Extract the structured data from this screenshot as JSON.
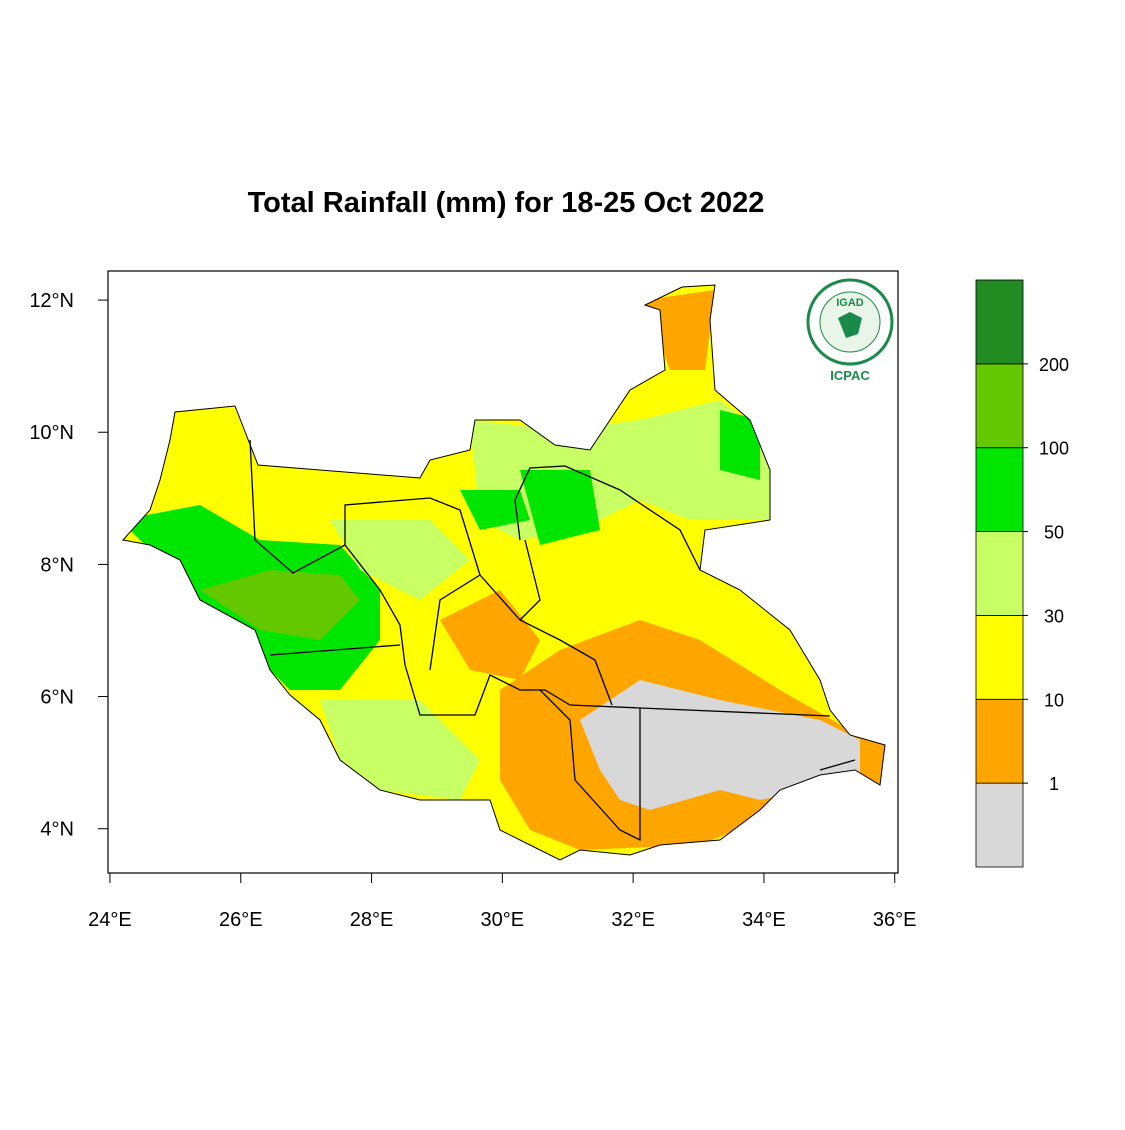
{
  "map": {
    "title": "Total Rainfall (mm) for 18-25 Oct 2022",
    "xlim": [
      23.97,
      36.05
    ],
    "ylim": [
      3.33,
      12.44
    ],
    "xticks": [
      {
        "value": 24,
        "label": "24°E"
      },
      {
        "value": 26,
        "label": "26°E"
      },
      {
        "value": 28,
        "label": "28°E"
      },
      {
        "value": 30,
        "label": "30°E"
      },
      {
        "value": 32,
        "label": "32°E"
      },
      {
        "value": 34,
        "label": "34°E"
      },
      {
        "value": 36,
        "label": "36°E"
      }
    ],
    "yticks": [
      {
        "value": 4,
        "label": "4°N"
      },
      {
        "value": 6,
        "label": "6°N"
      },
      {
        "value": 8,
        "label": "8°N"
      },
      {
        "value": 10,
        "label": "10°N"
      },
      {
        "value": 12,
        "label": "12°N"
      }
    ],
    "legend": {
      "levels": [
        1,
        10,
        30,
        50,
        100,
        200
      ],
      "colors": [
        "#d8d8d8",
        "#ffa500",
        "#ffff00",
        "#c8ff64",
        "#00e600",
        "#64c800",
        "#228b22"
      ]
    },
    "logo": {
      "name": "IGAD",
      "org": "ICPAC"
    }
  }
}
